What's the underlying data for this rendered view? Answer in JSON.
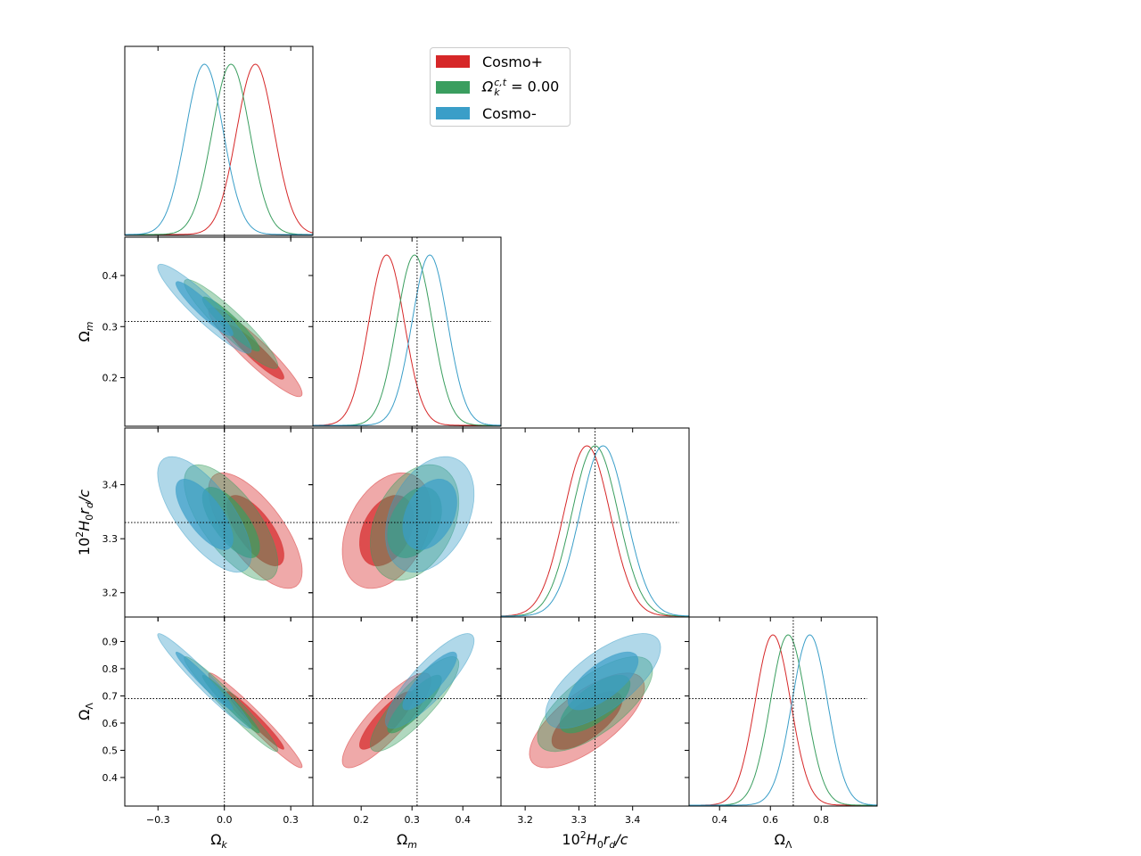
{
  "chart_data": {
    "type": "triangle-corner",
    "parameters": [
      {
        "key": "Ok",
        "label": "Ω_k",
        "truth": 0.0,
        "range": [
          -0.45,
          0.4
        ],
        "ticks": [
          -0.3,
          0.0,
          0.3
        ],
        "tick_labels": [
          "−0.3",
          "0.0",
          "0.3"
        ]
      },
      {
        "key": "Om",
        "label": "Ω_m",
        "truth": 0.31,
        "range": [
          0.105,
          0.475
        ],
        "ticks": [
          0.2,
          0.3,
          0.4
        ],
        "tick_labels": [
          "0.2",
          "0.3",
          "0.4"
        ]
      },
      {
        "key": "H0rd",
        "label": "10^2 H_0 r_d / c",
        "truth": 3.33,
        "range": [
          3.155,
          3.505
        ],
        "ticks": [
          3.2,
          3.3,
          3.4
        ],
        "tick_labels": [
          "3.2",
          "3.3",
          "3.4"
        ]
      },
      {
        "key": "OL",
        "label": "Ω_Λ",
        "truth": 0.69,
        "range": [
          0.295,
          0.99
        ],
        "ticks": [
          0.4,
          0.5,
          0.6,
          0.7,
          0.8,
          0.9
        ],
        "tick_labels": [
          "0.4",
          "0.5",
          "0.6",
          "0.7",
          "0.8",
          "0.9"
        ]
      }
    ],
    "diag_tick_labels": [
      [
        "−0.3",
        "0.0",
        "0.3"
      ],
      [
        "0.2",
        "0.3",
        "0.4"
      ],
      [
        "3.2",
        "3.3",
        "3.4"
      ],
      [
        "0.4",
        "0.6",
        "0.8"
      ]
    ],
    "diag_ticks": [
      [
        -0.3,
        0.0,
        0.3
      ],
      [
        0.2,
        0.3,
        0.4
      ],
      [
        3.2,
        3.3,
        3.4
      ],
      [
        0.4,
        0.6,
        0.8
      ]
    ],
    "series": [
      {
        "name": "Cosmo+",
        "color": "#d62728",
        "mean": {
          "Ok": 0.14,
          "Om": 0.25,
          "H0rd": 3.315,
          "OL": 0.61
        },
        "sd": {
          "Ok": 0.085,
          "Om": 0.035,
          "H0rd": 0.043,
          "OL": 0.07
        }
      },
      {
        "name": "Ω_k^{c,t} = 0.00",
        "color": "#3a9e5f",
        "mean": {
          "Ok": 0.03,
          "Om": 0.305,
          "H0rd": 3.33,
          "OL": 0.67
        },
        "sd": {
          "Ok": 0.085,
          "Om": 0.035,
          "H0rd": 0.043,
          "OL": 0.07
        }
      },
      {
        "name": "Cosmo-",
        "color": "#3a9ec8",
        "mean": {
          "Ok": -0.09,
          "Om": 0.335,
          "H0rd": 3.345,
          "OL": 0.755
        },
        "sd": {
          "Ok": 0.085,
          "Om": 0.035,
          "H0rd": 0.043,
          "OL": 0.07
        }
      }
    ],
    "correlations": {
      "Ok-Om": -0.93,
      "Ok-H0rd": -0.7,
      "Ok-OL": -0.97,
      "Om-H0rd": 0.35,
      "Om-OL": 0.85,
      "H0rd-OL": 0.7
    },
    "legend": {
      "placement": "top-center",
      "entries": [
        "Cosmo+",
        "Ω_k^{c,t} = 0.00",
        "Cosmo-"
      ]
    }
  }
}
